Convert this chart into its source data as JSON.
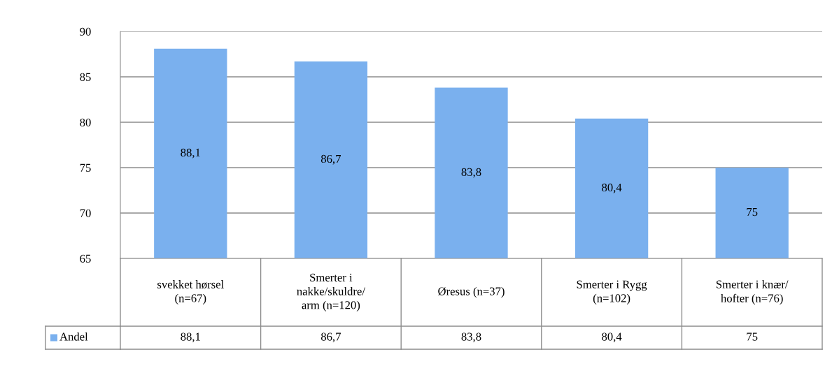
{
  "chart_data": {
    "type": "bar",
    "categories": [
      "svekket hørsel\n(n=67)",
      "Smerter i\nnakke/skuldre/\narm (n=120)",
      "Øresus (n=37)",
      "Smerter i Rygg\n(n=102)",
      "Smerter i knær/\nhofter (n=76)"
    ],
    "series": [
      {
        "name": "Andel",
        "color": "#7ab0ee",
        "values": [
          88.1,
          86.7,
          83.8,
          80.4,
          75
        ],
        "value_labels": [
          "88,1",
          "86,7",
          "83,8",
          "80,4",
          "75"
        ]
      }
    ],
    "ylim": [
      65,
      90
    ],
    "yticks": [
      65,
      70,
      75,
      80,
      85,
      90
    ],
    "grid": "y",
    "legend": "bottom"
  }
}
